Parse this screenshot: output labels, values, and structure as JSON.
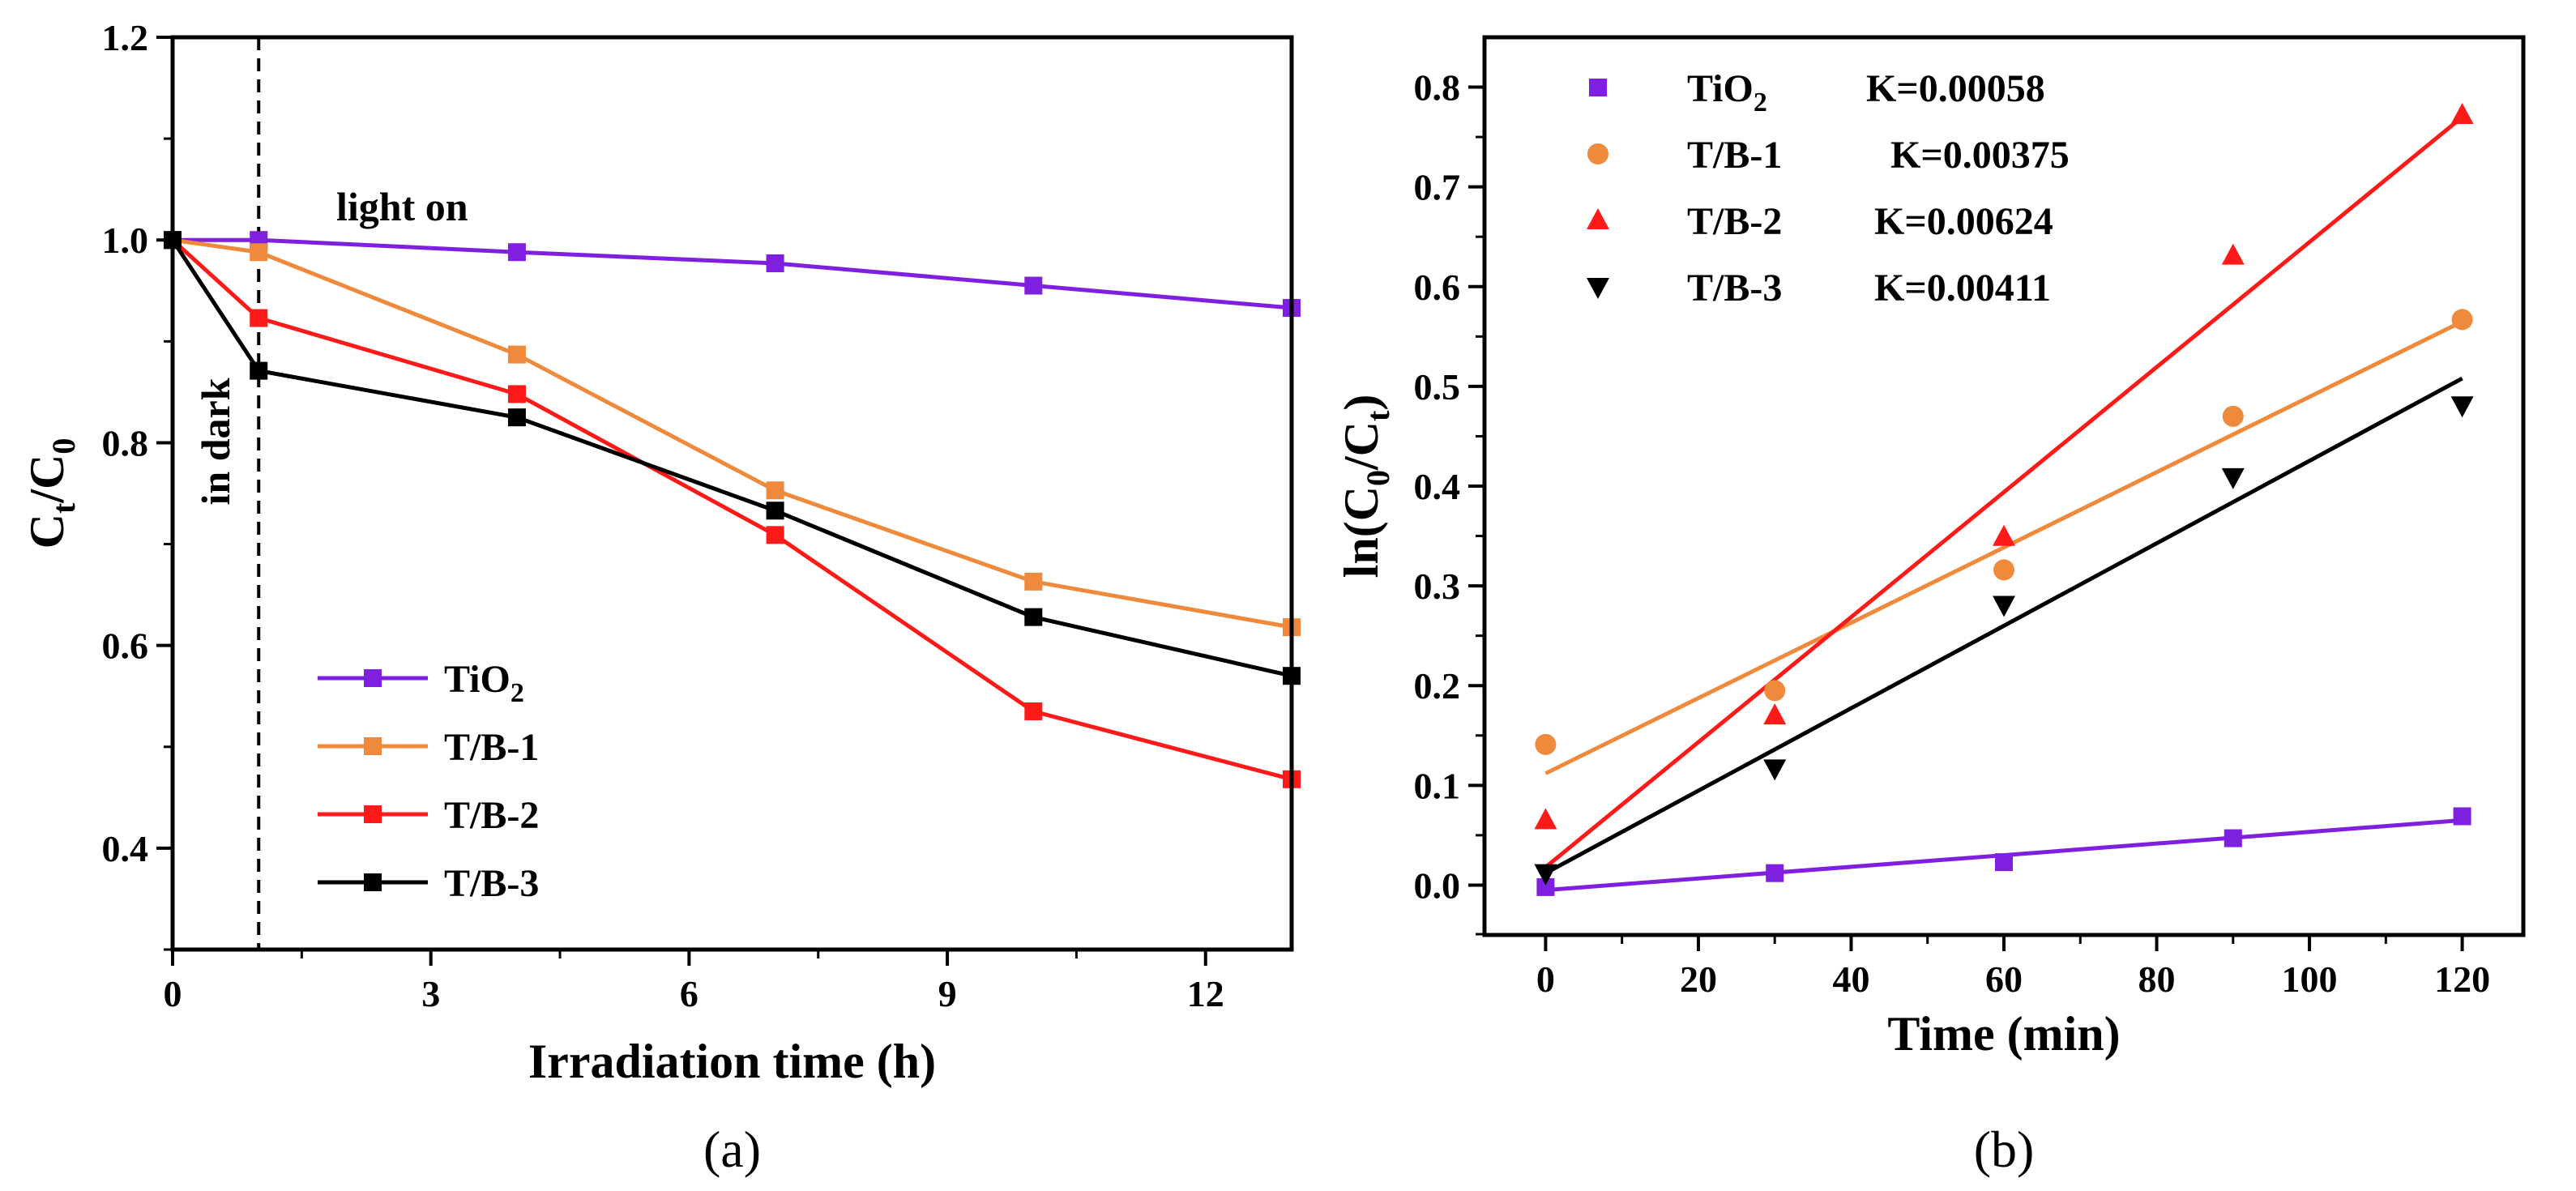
{
  "chart_data": [
    {
      "type": "line",
      "panel_label": "(a)",
      "xlabel": "Irradiation time (h)",
      "ylabel": "Ct/C0",
      "ylabel_parts": {
        "main": "C",
        "sub1": "t",
        "slash": "/",
        "main2": "C",
        "sub2": "0"
      },
      "xlim": [
        0,
        13
      ],
      "ylim": [
        0.3,
        1.2
      ],
      "xticks": [
        0,
        3,
        6,
        9,
        12
      ],
      "xtick_labels": [
        "0",
        "3",
        "6",
        "9",
        "12"
      ],
      "yticks": [
        0.4,
        0.6,
        0.8,
        1.0,
        1.2
      ],
      "ytick_labels": [
        "0.4",
        "0.6",
        "0.8",
        "1.0",
        "1.2"
      ],
      "dashed_line_x": 1,
      "annotations": {
        "light_on": "light on",
        "in_dark": "in dark"
      },
      "legend_position": "bottom-left",
      "x": [
        0,
        1,
        4,
        7,
        10,
        13
      ],
      "series": [
        {
          "name": "TiO2",
          "name_base": "TiO",
          "name_sub": "2",
          "color": "#7f1fe0",
          "marker": "square",
          "values": [
            1.0,
            1.0,
            0.988,
            0.977,
            0.955,
            0.933
          ]
        },
        {
          "name": "T/B-1",
          "name_base": "T/B-1",
          "name_sub": "",
          "color": "#ef8a3c",
          "marker": "square",
          "values": [
            1.0,
            0.988,
            0.887,
            0.753,
            0.663,
            0.618
          ]
        },
        {
          "name": "T/B-2",
          "name_base": "T/B-2",
          "name_sub": "",
          "color": "#ff1a1a",
          "marker": "square",
          "values": [
            1.0,
            0.923,
            0.848,
            0.709,
            0.535,
            0.468
          ]
        },
        {
          "name": "T/B-3",
          "name_base": "T/B-3",
          "name_sub": "",
          "color": "#000000",
          "marker": "square",
          "values": [
            1.0,
            0.871,
            0.825,
            0.733,
            0.628,
            0.57
          ]
        }
      ]
    },
    {
      "type": "scatter",
      "panel_label": "(b)",
      "xlabel": "Time (min)",
      "ylabel": "ln(C0/Ct)",
      "ylabel_parts": {
        "prefix": "ln(C",
        "sub1": "0",
        "mid": "/C",
        "sub2": "t",
        "suffix": ")"
      },
      "xlim": [
        -8,
        128
      ],
      "ylim": [
        -0.05,
        0.85
      ],
      "xticks": [
        0,
        20,
        40,
        60,
        80,
        100,
        120
      ],
      "xtick_labels": [
        "0",
        "20",
        "40",
        "60",
        "80",
        "100",
        "120"
      ],
      "yticks": [
        0.0,
        0.1,
        0.2,
        0.3,
        0.4,
        0.5,
        0.6,
        0.7,
        0.8
      ],
      "ytick_labels": [
        "0.0",
        "0.1",
        "0.2",
        "0.3",
        "0.4",
        "0.5",
        "0.6",
        "0.7",
        "0.8"
      ],
      "legend_position": "top-left",
      "x": [
        0,
        30,
        60,
        90,
        120
      ],
      "series": [
        {
          "name": "TiO2",
          "name_base": "TiO",
          "name_sub": "2",
          "k_label": "K=0.00058",
          "color": "#7f1fe0",
          "marker": "square",
          "values": [
            -0.002,
            0.012,
            0.023,
            0.047,
            0.069
          ],
          "fit": [
            -0.005,
            0.065
          ]
        },
        {
          "name": "T/B-1",
          "name_base": "T/B-1",
          "name_sub": "",
          "k_label": "K=0.00375",
          "color": "#ef8a3c",
          "marker": "circle",
          "values": [
            0.141,
            0.195,
            0.316,
            0.47,
            0.567
          ],
          "fit": [
            0.112,
            0.565
          ]
        },
        {
          "name": "T/B-2",
          "name_base": "T/B-2",
          "name_sub": "",
          "k_label": "K=0.00624",
          "color": "#ff1a1a",
          "marker": "triangle-up",
          "values": [
            0.065,
            0.17,
            0.349,
            0.631,
            0.772
          ],
          "fit": [
            0.018,
            0.77
          ]
        },
        {
          "name": "T/B-3",
          "name_base": "T/B-3",
          "name_sub": "",
          "k_label": "K=0.00411",
          "color": "#000000",
          "marker": "triangle-down",
          "values": [
            0.012,
            0.117,
            0.281,
            0.409,
            0.481
          ],
          "fit": [
            0.012,
            0.508
          ]
        }
      ]
    }
  ]
}
